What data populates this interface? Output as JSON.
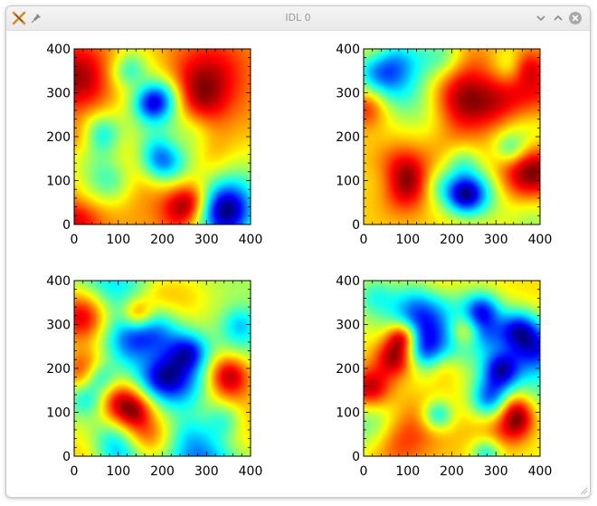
{
  "window": {
    "title": "IDL 0",
    "icons": {
      "app": "idl-app-icon",
      "pin": "pin-icon",
      "minimize": "chevron-down-icon",
      "maximize": "chevron-up-icon",
      "close": "close-circle-icon"
    }
  },
  "chart_data": [
    {
      "type": "heatmap",
      "title": "",
      "xlabel": "",
      "ylabel": "",
      "xlim": [
        0,
        400
      ],
      "ylim": [
        0,
        400
      ],
      "xticks": [
        "0",
        "100",
        "200",
        "300",
        "400"
      ],
      "yticks": [
        "0",
        "100",
        "200",
        "300",
        "400"
      ],
      "colormap": "jet"
    },
    {
      "type": "heatmap",
      "title": "",
      "xlabel": "",
      "ylabel": "",
      "xlim": [
        0,
        400
      ],
      "ylim": [
        0,
        400
      ],
      "xticks": [
        "0",
        "100",
        "200",
        "300",
        "400"
      ],
      "yticks": [
        "0",
        "100",
        "200",
        "300",
        "400"
      ],
      "colormap": "jet"
    },
    {
      "type": "heatmap",
      "title": "",
      "xlabel": "",
      "ylabel": "",
      "xlim": [
        0,
        400
      ],
      "ylim": [
        0,
        400
      ],
      "xticks": [
        "0",
        "100",
        "200",
        "300",
        "400"
      ],
      "yticks": [
        "0",
        "100",
        "200",
        "300",
        "400"
      ],
      "colormap": "jet"
    },
    {
      "type": "heatmap",
      "title": "",
      "xlabel": "",
      "ylabel": "",
      "xlim": [
        0,
        400
      ],
      "ylim": [
        0,
        400
      ],
      "xticks": [
        "0",
        "100",
        "200",
        "300",
        "400"
      ],
      "yticks": [
        "0",
        "100",
        "200",
        "300",
        "400"
      ],
      "colormap": "jet"
    }
  ]
}
